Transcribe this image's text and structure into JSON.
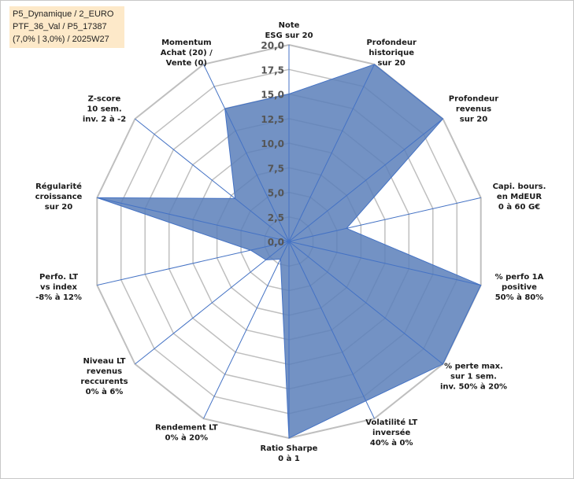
{
  "info_box": {
    "lines": [
      "P5_Dynamique / 2_EURO",
      "PTF_36_Val / P5_17387",
      "(7,0% | 3,0%) / 2025W27"
    ]
  },
  "chart_data": {
    "type": "radar",
    "title": "",
    "rlim": [
      0,
      20
    ],
    "ticks": [
      "0,0",
      "2,5",
      "5,0",
      "7,5",
      "10,0",
      "12,5",
      "15,0",
      "17,5",
      "20,0"
    ],
    "grid": true,
    "categories": [
      [
        "Note",
        "ESG sur 20"
      ],
      [
        "Profondeur",
        "historique",
        "sur 20"
      ],
      [
        "Profondeur",
        "revenus",
        "sur 20"
      ],
      [
        "Capi. bours.",
        "en MdEUR",
        "0 à 60 G€"
      ],
      [
        "% perfo 1A",
        "positive",
        "50% à 80%"
      ],
      [
        "% perte max.",
        "sur 1 sem.",
        "inv. 50% à 20%"
      ],
      [
        "Volatilité LT",
        "inversée",
        "40% à 0%"
      ],
      [
        "Ratio Sharpe",
        "0 à 1"
      ],
      [
        "Rendement LT",
        "0% à 20%"
      ],
      [
        "Niveau LT",
        "revenus",
        "reccurents",
        "0% à 6%"
      ],
      [
        "Perfo. LT",
        "vs index",
        "-8% à 12%"
      ],
      [
        "Régularité",
        "croissance",
        "sur 20"
      ],
      [
        "Z-score",
        "10 sem.",
        "inv. 2 à -2"
      ],
      [
        "Momentum",
        "Achat (20) /",
        "Vente (0)"
      ]
    ],
    "series": [
      {
        "values": [
          15,
          20,
          20,
          6,
          20,
          20,
          18,
          20,
          2,
          3,
          4,
          20,
          7,
          15
        ],
        "color": "#5b7fba",
        "fill_opacity": 0.85
      }
    ],
    "colors": {
      "grid": "#bfbfbf",
      "spoke": "#4472c4",
      "series_stroke": "#4472c4"
    }
  }
}
